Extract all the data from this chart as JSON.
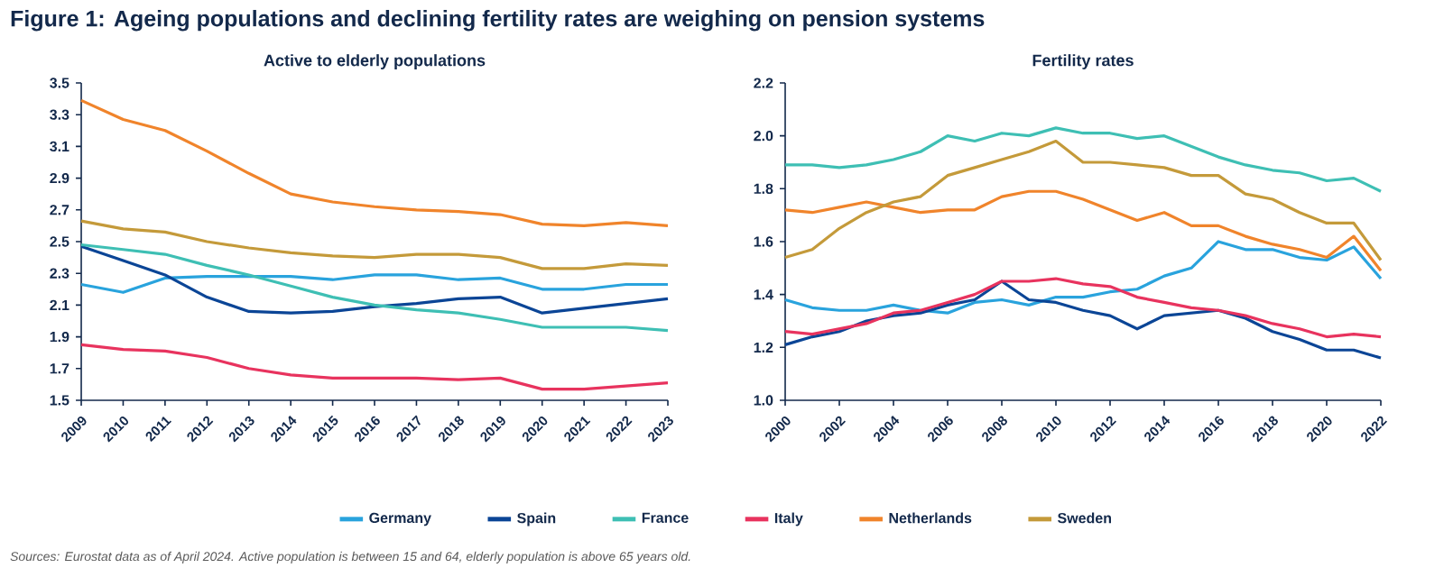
{
  "chart_data": [
    {
      "type": "line",
      "title": "Figure 1: Ageing populations and declining fertility rates are weighing on pension systems",
      "subtitle": "Active to elderly populations",
      "x": [
        2009,
        2010,
        2011,
        2012,
        2013,
        2014,
        2015,
        2016,
        2017,
        2018,
        2019,
        2020,
        2021,
        2022,
        2023
      ],
      "xlim": [
        2009,
        2023
      ],
      "xticks": [
        2009,
        2010,
        2011,
        2012,
        2013,
        2014,
        2015,
        2016,
        2017,
        2018,
        2019,
        2020,
        2021,
        2022,
        2023
      ],
      "ylim": [
        1.5,
        3.5
      ],
      "yticks": [
        1.5,
        1.7,
        1.9,
        2.1,
        2.3,
        2.5,
        2.7,
        2.9,
        3.1,
        3.3,
        3.5
      ],
      "grid": false,
      "legend": "bottom",
      "marker": "none",
      "line_style": "solid",
      "series": [
        {
          "name": "Germany",
          "color": "#29a3dd",
          "values": [
            2.23,
            2.18,
            2.27,
            2.28,
            2.28,
            2.28,
            2.26,
            2.29,
            2.29,
            2.26,
            2.27,
            2.2,
            2.2,
            2.23,
            2.23
          ]
        },
        {
          "name": "Spain",
          "color": "#0b4596",
          "values": [
            2.47,
            2.38,
            2.29,
            2.15,
            2.06,
            2.05,
            2.06,
            2.09,
            2.11,
            2.14,
            2.15,
            2.05,
            2.08,
            2.11,
            2.14
          ]
        },
        {
          "name": "France",
          "color": "#3ebfb4",
          "values": [
            2.48,
            2.45,
            2.42,
            2.35,
            2.29,
            2.22,
            2.15,
            2.1,
            2.07,
            2.05,
            2.01,
            1.96,
            1.96,
            1.96,
            1.94
          ]
        },
        {
          "name": "Italy",
          "color": "#e8335e",
          "values": [
            1.85,
            1.82,
            1.81,
            1.77,
            1.7,
            1.66,
            1.64,
            1.64,
            1.64,
            1.63,
            1.64,
            1.57,
            1.57,
            1.59,
            1.61
          ]
        },
        {
          "name": "Netherlands",
          "color": "#f0842b",
          "values": [
            3.39,
            3.27,
            3.2,
            3.07,
            2.93,
            2.8,
            2.75,
            2.72,
            2.7,
            2.69,
            2.67,
            2.61,
            2.6,
            2.62,
            2.6
          ]
        },
        {
          "name": "Sweden",
          "color": "#c49a3a",
          "values": [
            2.63,
            2.58,
            2.56,
            2.5,
            2.46,
            2.43,
            2.41,
            2.4,
            2.42,
            2.42,
            2.4,
            2.33,
            2.33,
            2.36,
            2.35
          ]
        }
      ],
      "annotations": [
        "Sources: Eurostat data as of April 2024. Active population is between 15 and 64, elderly population is above 65 years old."
      ]
    },
    {
      "type": "line",
      "subtitle": "Fertility rates",
      "x": [
        2000,
        2001,
        2002,
        2003,
        2004,
        2005,
        2006,
        2007,
        2008,
        2009,
        2010,
        2011,
        2012,
        2013,
        2014,
        2015,
        2016,
        2017,
        2018,
        2019,
        2020,
        2021,
        2022
      ],
      "xlim": [
        2000,
        2022
      ],
      "xticks": [
        2000,
        2002,
        2004,
        2006,
        2008,
        2010,
        2012,
        2014,
        2016,
        2018,
        2020,
        2022
      ],
      "ylim": [
        1.0,
        2.2
      ],
      "yticks": [
        {
          "value": 1.0,
          "label": "1.0"
        },
        1.2,
        1.4,
        1.6,
        1.8,
        {
          "value": 2.0,
          "label": "2.0"
        },
        2.2
      ],
      "grid": false,
      "marker": "none",
      "line_style": "solid",
      "series": [
        {
          "color": "#29a3dd",
          "values": [
            1.38,
            1.35,
            1.34,
            1.34,
            1.36,
            1.34,
            1.33,
            1.37,
            1.38,
            1.36,
            1.39,
            1.39,
            1.41,
            1.42,
            1.47,
            1.5,
            1.6,
            1.57,
            1.57,
            1.54,
            1.53,
            1.58,
            1.46
          ]
        },
        {
          "color": "#0b4596",
          "values": [
            1.21,
            1.24,
            1.26,
            1.3,
            1.32,
            1.33,
            1.36,
            1.38,
            1.45,
            1.38,
            1.37,
            1.34,
            1.32,
            1.27,
            1.32,
            1.33,
            1.34,
            1.31,
            1.26,
            1.23,
            1.19,
            1.19,
            1.16
          ]
        },
        {
          "color": "#3ebfb4",
          "values": [
            1.89,
            1.89,
            1.88,
            1.89,
            1.91,
            1.94,
            2.0,
            1.98,
            2.01,
            2.0,
            2.03,
            2.01,
            2.01,
            1.99,
            2.0,
            1.96,
            1.92,
            1.89,
            1.87,
            1.86,
            1.83,
            1.84,
            1.79
          ]
        },
        {
          "color": "#e8335e",
          "values": [
            1.26,
            1.25,
            1.27,
            1.29,
            1.33,
            1.34,
            1.37,
            1.4,
            1.45,
            1.45,
            1.46,
            1.44,
            1.43,
            1.39,
            1.37,
            1.35,
            1.34,
            1.32,
            1.29,
            1.27,
            1.24,
            1.25,
            1.24
          ]
        },
        {
          "color": "#f0842b",
          "values": [
            1.72,
            1.71,
            1.73,
            1.75,
            1.73,
            1.71,
            1.72,
            1.72,
            1.77,
            1.79,
            1.79,
            1.76,
            1.72,
            1.68,
            1.71,
            1.66,
            1.66,
            1.62,
            1.59,
            1.57,
            1.54,
            1.62,
            1.49
          ]
        },
        {
          "color": "#c49a3a",
          "values": [
            1.54,
            1.57,
            1.65,
            1.71,
            1.75,
            1.77,
            1.85,
            1.88,
            1.91,
            1.94,
            1.98,
            1.9,
            1.9,
            1.89,
            1.88,
            1.85,
            1.85,
            1.78,
            1.76,
            1.71,
            1.67,
            1.67,
            1.53
          ]
        }
      ]
    }
  ]
}
